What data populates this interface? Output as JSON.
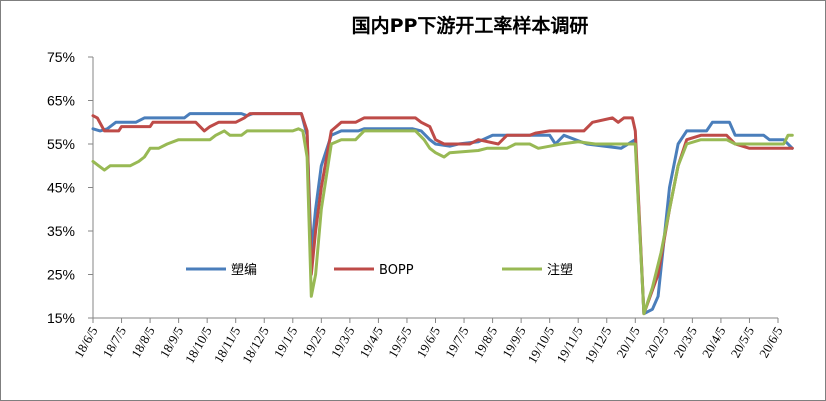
{
  "chart_data": {
    "type": "line",
    "title": "国内PP下游开工率样本调研",
    "xlabel": "",
    "ylabel": "",
    "ylim": [
      15,
      75
    ],
    "yticks": [
      "75%",
      "65%",
      "55%",
      "45%",
      "35%",
      "25%",
      "15%"
    ],
    "grid": false,
    "legend_position": "middle-center",
    "x": [
      "18/6/5",
      "18/7/5",
      "18/8/5",
      "18/9/5",
      "18/10/5",
      "18/11/5",
      "18/12/5",
      "19/1/5",
      "19/2/5",
      "19/3/5",
      "19/4/5",
      "19/5/5",
      "19/6/5",
      "19/7/5",
      "19/8/5",
      "19/9/5",
      "19/10/5",
      "19/11/5",
      "19/12/5",
      "20/1/5",
      "20/2/5",
      "20/3/5",
      "20/4/5",
      "20/5/5",
      "20/6/5"
    ],
    "series": [
      {
        "name": "塑编",
        "color": "#4a7ebb",
        "points": [
          [
            0,
            58.5
          ],
          [
            0.25,
            58
          ],
          [
            0.5,
            58.5
          ],
          [
            0.8,
            60
          ],
          [
            1.5,
            60
          ],
          [
            1.8,
            61
          ],
          [
            3.2,
            61
          ],
          [
            3.4,
            62
          ],
          [
            5.2,
            62
          ],
          [
            5.4,
            61.5
          ],
          [
            5.6,
            62
          ],
          [
            7.3,
            62
          ],
          [
            7.5,
            57
          ],
          [
            7.65,
            30
          ],
          [
            7.8,
            40
          ],
          [
            8.0,
            50
          ],
          [
            8.35,
            57
          ],
          [
            8.7,
            58
          ],
          [
            9.3,
            58
          ],
          [
            9.5,
            58.5
          ],
          [
            11.2,
            58.5
          ],
          [
            11.5,
            58
          ],
          [
            11.8,
            56
          ],
          [
            12.0,
            55
          ],
          [
            12.5,
            54.5
          ],
          [
            12.8,
            55
          ],
          [
            13.5,
            55.5
          ],
          [
            14.0,
            57
          ],
          [
            15.5,
            57
          ],
          [
            16.0,
            57
          ],
          [
            16.2,
            55
          ],
          [
            16.5,
            57
          ],
          [
            17.3,
            55
          ],
          [
            18.5,
            54
          ],
          [
            19.0,
            56
          ],
          [
            19.3,
            16
          ],
          [
            19.6,
            17
          ],
          [
            19.8,
            20
          ],
          [
            20.2,
            45
          ],
          [
            20.5,
            55
          ],
          [
            20.8,
            58
          ],
          [
            21.5,
            58
          ],
          [
            21.7,
            60
          ],
          [
            22.3,
            60
          ],
          [
            22.5,
            57
          ],
          [
            23.5,
            57
          ],
          [
            23.7,
            56
          ],
          [
            24.2,
            56
          ],
          [
            24.5,
            54
          ]
        ]
      },
      {
        "name": "BOPP",
        "color": "#be4b48",
        "points": [
          [
            0,
            61.5
          ],
          [
            0.15,
            61
          ],
          [
            0.4,
            58
          ],
          [
            0.9,
            58
          ],
          [
            1.0,
            59
          ],
          [
            2.0,
            59
          ],
          [
            2.1,
            60
          ],
          [
            3.6,
            60
          ],
          [
            3.9,
            58
          ],
          [
            4.1,
            59
          ],
          [
            4.4,
            60
          ],
          [
            5.0,
            60
          ],
          [
            5.3,
            61
          ],
          [
            5.5,
            62
          ],
          [
            7.3,
            62
          ],
          [
            7.5,
            58
          ],
          [
            7.65,
            25
          ],
          [
            7.8,
            35
          ],
          [
            8.0,
            45
          ],
          [
            8.35,
            58
          ],
          [
            8.7,
            60
          ],
          [
            9.2,
            60
          ],
          [
            9.5,
            61
          ],
          [
            11.3,
            61
          ],
          [
            11.5,
            60
          ],
          [
            11.8,
            59
          ],
          [
            12.0,
            56
          ],
          [
            12.3,
            55
          ],
          [
            13.2,
            55
          ],
          [
            13.5,
            56
          ],
          [
            14.2,
            55
          ],
          [
            14.5,
            57
          ],
          [
            15.3,
            57
          ],
          [
            15.5,
            57.5
          ],
          [
            16.0,
            58
          ],
          [
            17.2,
            58
          ],
          [
            17.5,
            60
          ],
          [
            18.2,
            61
          ],
          [
            18.4,
            60
          ],
          [
            18.6,
            61
          ],
          [
            18.9,
            61
          ],
          [
            19.0,
            58
          ],
          [
            19.3,
            16
          ],
          [
            19.8,
            25
          ],
          [
            20.2,
            40
          ],
          [
            20.5,
            50
          ],
          [
            20.8,
            56
          ],
          [
            21.3,
            57
          ],
          [
            22.2,
            57
          ],
          [
            22.5,
            55
          ],
          [
            23.0,
            54
          ],
          [
            24.5,
            54
          ]
        ]
      },
      {
        "name": "注塑",
        "color": "#98b954",
        "points": [
          [
            0,
            51
          ],
          [
            0.2,
            50
          ],
          [
            0.4,
            49
          ],
          [
            0.6,
            50
          ],
          [
            1.3,
            50
          ],
          [
            1.6,
            51
          ],
          [
            1.8,
            52
          ],
          [
            2.0,
            54
          ],
          [
            2.3,
            54
          ],
          [
            2.6,
            55
          ],
          [
            3.0,
            56
          ],
          [
            4.1,
            56
          ],
          [
            4.3,
            57
          ],
          [
            4.6,
            58
          ],
          [
            4.8,
            57
          ],
          [
            5.2,
            57
          ],
          [
            5.4,
            58
          ],
          [
            7.0,
            58
          ],
          [
            7.2,
            58.5
          ],
          [
            7.35,
            58
          ],
          [
            7.5,
            52
          ],
          [
            7.65,
            20
          ],
          [
            7.8,
            25
          ],
          [
            8.0,
            40
          ],
          [
            8.35,
            55
          ],
          [
            8.7,
            56
          ],
          [
            9.2,
            56
          ],
          [
            9.5,
            58
          ],
          [
            11.3,
            58
          ],
          [
            11.6,
            56
          ],
          [
            11.8,
            54
          ],
          [
            12.0,
            53
          ],
          [
            12.3,
            52
          ],
          [
            12.5,
            53
          ],
          [
            13.5,
            53.5
          ],
          [
            13.8,
            54
          ],
          [
            14.5,
            54
          ],
          [
            14.8,
            55
          ],
          [
            15.3,
            55
          ],
          [
            15.6,
            54
          ],
          [
            16.0,
            54.5
          ],
          [
            16.4,
            55
          ],
          [
            17.0,
            55.5
          ],
          [
            17.6,
            55
          ],
          [
            18.5,
            55
          ],
          [
            19.0,
            55
          ],
          [
            19.3,
            16
          ],
          [
            19.6,
            22
          ],
          [
            19.9,
            30
          ],
          [
            20.2,
            40
          ],
          [
            20.5,
            50
          ],
          [
            20.8,
            55
          ],
          [
            21.3,
            56
          ],
          [
            22.2,
            56
          ],
          [
            22.5,
            55
          ],
          [
            24.2,
            55
          ],
          [
            24.35,
            57
          ],
          [
            24.5,
            57
          ]
        ]
      }
    ]
  }
}
